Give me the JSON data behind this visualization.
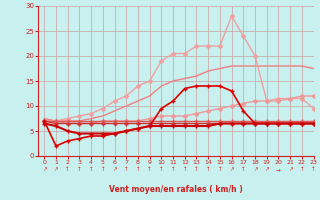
{
  "xlabel": "Vent moyen/en rafales ( km/h )",
  "xlim": [
    -0.5,
    23
  ],
  "ylim": [
    0,
    30
  ],
  "yticks": [
    0,
    5,
    10,
    15,
    20,
    25,
    30
  ],
  "xticks": [
    0,
    1,
    2,
    3,
    4,
    5,
    6,
    7,
    8,
    9,
    10,
    11,
    12,
    13,
    14,
    15,
    16,
    17,
    18,
    19,
    20,
    21,
    22,
    23
  ],
  "bg_color": "#c8f0ee",
  "grid_color": "#c8a0a0",
  "axis_color": "#cc2222",
  "x": [
    0,
    1,
    2,
    3,
    4,
    5,
    6,
    7,
    8,
    9,
    10,
    11,
    12,
    13,
    14,
    15,
    16,
    17,
    18,
    19,
    20,
    21,
    22,
    23
  ],
  "lines": [
    {
      "y": [
        7,
        2,
        3,
        3.5,
        4,
        4,
        4.5,
        5,
        5.5,
        6,
        9.5,
        11,
        13.5,
        14,
        14,
        14,
        13,
        9,
        6.5,
        6.5,
        6.5,
        6.5,
        6.5,
        6.5
      ],
      "color": "#dd0000",
      "lw": 1.2,
      "marker": "+",
      "ms": 3.5,
      "zorder": 6
    },
    {
      "y": [
        6.5,
        6,
        5,
        4.5,
        4.5,
        4.5,
        4.5,
        5,
        5.5,
        6,
        6,
        6,
        6,
        6,
        6,
        6.5,
        6.5,
        6.5,
        6.5,
        6.5,
        6.5,
        6.5,
        6.5,
        6.5
      ],
      "color": "#cc0000",
      "lw": 1.5,
      "marker": "+",
      "ms": 3.5,
      "zorder": 7
    },
    {
      "y": [
        7,
        6.5,
        6.5,
        6.5,
        6.5,
        6.5,
        6.5,
        6.5,
        6.5,
        6.5,
        6.5,
        6.5,
        6.5,
        6.5,
        6.5,
        6.5,
        6.5,
        6.5,
        6.5,
        6.5,
        6.5,
        6.5,
        6.5,
        6.5
      ],
      "color": "#cc3333",
      "lw": 1.0,
      "marker": "+",
      "ms": 3.0,
      "zorder": 5
    },
    {
      "y": [
        7,
        7,
        7,
        7,
        7,
        7,
        7,
        7,
        7,
        7,
        7,
        7,
        7,
        7,
        7,
        7,
        7,
        7,
        7,
        7,
        7,
        7,
        7,
        7
      ],
      "color": "#dd5555",
      "lw": 1.0,
      "marker": "+",
      "ms": 3.0,
      "zorder": 4
    },
    {
      "y": [
        7,
        7,
        6.5,
        6.5,
        6.5,
        7,
        7,
        7,
        7,
        7.5,
        8,
        8,
        8,
        8.5,
        9,
        9.5,
        10,
        10.5,
        11,
        11,
        11,
        11.5,
        12,
        12
      ],
      "color": "#ee9999",
      "lw": 1.0,
      "marker": "D",
      "ms": 2.0,
      "zorder": 3
    },
    {
      "y": [
        7.5,
        7,
        7,
        7,
        7.5,
        8,
        9,
        10,
        11,
        12,
        14,
        15,
        15.5,
        16,
        17,
        17.5,
        18,
        18,
        18,
        18,
        18,
        18,
        18,
        17.5
      ],
      "color": "#ee8080",
      "lw": 1.0,
      "marker": null,
      "ms": 0,
      "zorder": 2
    },
    {
      "y": [
        7,
        7,
        7.5,
        8,
        8.5,
        9.5,
        11,
        12,
        14,
        15,
        19,
        20.5,
        20.5,
        22,
        22,
        22,
        28,
        24,
        20,
        11,
        11.5,
        11.5,
        11.5,
        9.5
      ],
      "color": "#f0a0a0",
      "lw": 1.0,
      "marker": "D",
      "ms": 2.0,
      "zorder": 2
    }
  ],
  "arrow_chars": [
    "↗",
    "↗",
    "↑",
    "↑",
    "↑",
    "↑",
    "↗",
    "↑",
    "↑",
    "↑",
    "↑",
    "↑",
    "↑",
    "↑",
    "↑",
    "↑",
    "↗",
    "↑",
    "↗",
    "↗",
    "→",
    "↗",
    "↑",
    "↑"
  ],
  "arrow_color": "#dd2222"
}
